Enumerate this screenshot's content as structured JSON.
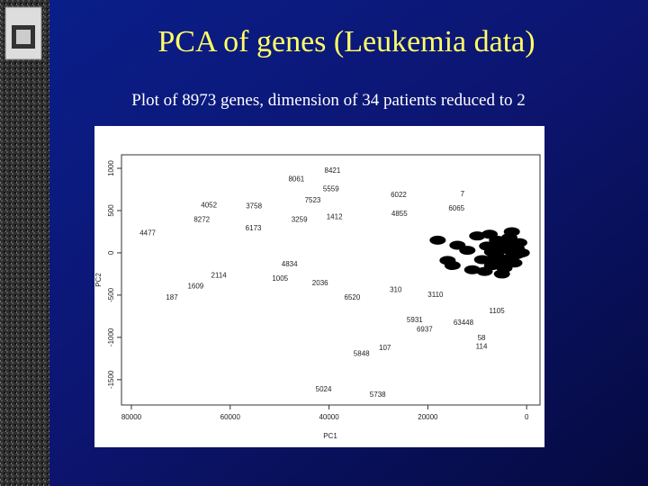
{
  "chart_data": {
    "type": "scatter",
    "title": "PCA of genes (Leukemia data)",
    "subtitle": "Plot of 8973 genes, dimension of 34 patients reduced to 2",
    "xlabel": "PC1",
    "ylabel": "PC2",
    "xlim": [
      82000,
      -2700
    ],
    "ylim": [
      -1800,
      1160
    ],
    "xticks": [
      80000,
      60000,
      40000,
      20000,
      0
    ],
    "yticks": [
      -1500,
      -1000,
      -500,
      0,
      500,
      1000
    ],
    "series": [
      {
        "color": "#222222",
        "labels": [
          "8421",
          "8061",
          "5559",
          "7523",
          "6022",
          "7",
          "4855",
          "6065",
          "4052",
          "3758",
          "8272",
          "4477",
          "1412",
          "3259",
          "6173",
          "2114",
          "1609",
          "187",
          "2036",
          "6520",
          "1005",
          "4834",
          "5931",
          "6937",
          "63448",
          "58",
          "114",
          "107",
          "5848",
          "5024",
          "5738",
          "1105",
          "3110",
          "310"
        ],
        "x": [
          39300,
          46600,
          39600,
          43300,
          25900,
          13000,
          25750,
          14200,
          64300,
          55200,
          65750,
          76700,
          38900,
          46000,
          55300,
          62300,
          67000,
          71800,
          41800,
          35300,
          49900,
          48000,
          22650,
          20640,
          12790,
          9130,
          9130,
          28680,
          33420,
          41100,
          30140,
          6030,
          18450,
          26480
        ],
        "y": [
          980,
          880,
          760,
          630,
          690,
          700,
          470,
          530,
          570,
          560,
          400,
          240,
          430,
          400,
          300,
          -260,
          -390,
          -520,
          -350,
          -520,
          -300,
          -130,
          -790,
          -900,
          -820,
          -1000,
          -1100,
          -1120,
          -1190,
          -1610,
          -1670,
          -680,
          -490,
          -430
        ]
      },
      {
        "color": "#000000",
        "x": [
          1000,
          2000,
          3000,
          4000,
          5000,
          6000,
          7000,
          8000,
          9000,
          10000,
          11000,
          12000,
          1500,
          2500,
          3500,
          4500,
          5500,
          6500,
          7500,
          8500,
          3000,
          5000,
          7000,
          2000,
          4000,
          6000,
          14000,
          16000,
          18000,
          15000
        ],
        "y": [
          0,
          50,
          -50,
          100,
          -100,
          150,
          -150,
          80,
          -80,
          200,
          -200,
          30,
          120,
          -120,
          180,
          -180,
          60,
          -60,
          220,
          -220,
          250,
          -250,
          10,
          -20,
          40,
          -40,
          90,
          -90,
          150,
          -150
        ]
      }
    ]
  }
}
